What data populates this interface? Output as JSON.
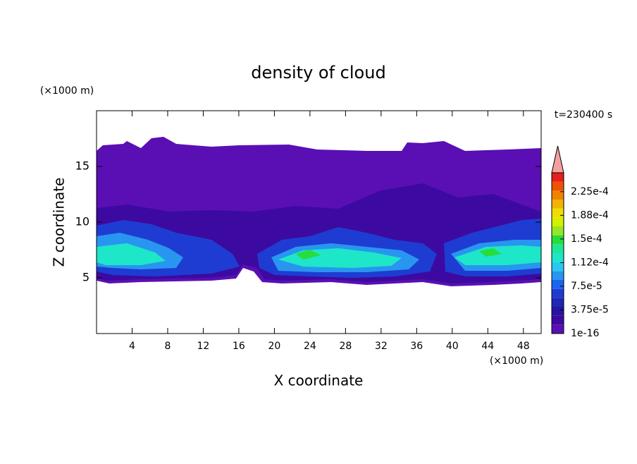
{
  "chart_data": {
    "type": "contour",
    "title": "density of cloud",
    "x_label": "X coordinate",
    "y_label": "Z coordinate",
    "x_unit": "(×1000 m)",
    "y_unit": "(×1000 m)",
    "annotation": "t=230400 s",
    "xlim": [
      0,
      50
    ],
    "ylim": [
      0,
      20
    ],
    "xticks": [
      4,
      8,
      12,
      16,
      20,
      24,
      28,
      32,
      36,
      40,
      44,
      48
    ],
    "yticks": [
      5,
      10,
      15
    ],
    "colorbar": {
      "clim": [
        1e-16,
        0.000255
      ],
      "ticks": [
        1e-16,
        {
          "value": 3.75e-05,
          "label": "3.75e-5"
        },
        {
          "value": 7.5e-05,
          "label": "7.5e-5"
        },
        {
          "value": 0.0001125,
          "label": "1.12e-4"
        },
        {
          "value": 0.00015,
          "label": "1.5e-4"
        },
        {
          "value": 0.0001875,
          "label": "1.88e-4"
        },
        {
          "value": 0.000225,
          "label": "2.25e-4"
        }
      ],
      "colors": [
        "#5a0fb4",
        "#3c0aa0",
        "#2814a0",
        "#1e28b4",
        "#1e3cd2",
        "#1e64f0",
        "#2896f0",
        "#28c8f0",
        "#1ee6c8",
        "#1ee696",
        "#28dc3c",
        "#96e628",
        "#d2f000",
        "#f0dc00",
        "#f0b400",
        "#f08200",
        "#f05000",
        "#e61e1e"
      ],
      "extend_color": "#f4a0a0"
    }
  }
}
